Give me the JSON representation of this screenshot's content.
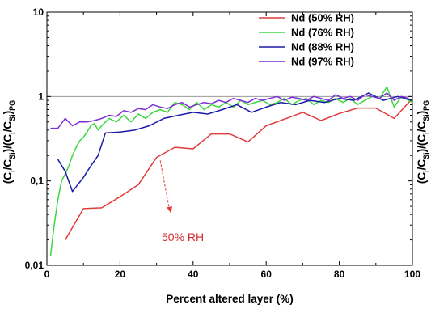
{
  "chart_data": {
    "type": "line",
    "xlabel": "Percent altered layer (%)",
    "ylabel_left": "(Ci/CSi)/(Ci/CSi)PG",
    "ylabel_right": "(Ci/CSi)/(Ci/CSi)PG",
    "xlim": [
      0,
      100
    ],
    "ylim": [
      0.01,
      10
    ],
    "yscale": "log",
    "xticks": [
      0,
      20,
      40,
      60,
      80,
      100
    ],
    "xtick_labels": [
      "0",
      "20",
      "40",
      "60",
      "80",
      "100"
    ],
    "yticks": [
      0.01,
      0.1,
      1,
      10
    ],
    "ytick_labels": [
      "0,01",
      "0,1",
      "1",
      "10"
    ],
    "reference_line": 1,
    "legend_position": "top-right",
    "annotation": {
      "text": "50% RH",
      "series": "Nd (50% RH)",
      "at_x": 31,
      "at_y": 0.2
    },
    "series": [
      {
        "name": "Nd (50% RH)",
        "color": "#e33b3b",
        "x": [
          5,
          10,
          15,
          20,
          25,
          30,
          35,
          40,
          45,
          50,
          55,
          60,
          70,
          75,
          80,
          85,
          90,
          95,
          100
        ],
        "y": [
          0.02,
          0.047,
          0.048,
          0.065,
          0.09,
          0.19,
          0.25,
          0.24,
          0.36,
          0.36,
          0.29,
          0.45,
          0.65,
          0.52,
          0.63,
          0.73,
          0.73,
          0.55,
          0.95
        ]
      },
      {
        "name": "Nd (76% RH)",
        "color": "#3dd63d",
        "x": [
          1,
          2,
          3,
          4,
          5,
          6,
          7,
          8,
          9,
          10,
          11,
          12,
          13,
          14,
          15,
          17,
          19,
          21,
          23,
          25,
          27,
          29,
          31,
          33,
          35,
          37,
          39,
          41,
          43,
          45,
          47,
          49,
          51,
          53,
          55,
          57,
          59,
          61,
          63,
          65,
          67,
          69,
          71,
          73,
          75,
          77,
          79,
          81,
          83,
          85,
          87,
          89,
          91,
          93,
          95,
          97,
          100
        ],
        "y": [
          0.013,
          0.03,
          0.06,
          0.1,
          0.12,
          0.15,
          0.2,
          0.25,
          0.3,
          0.33,
          0.38,
          0.45,
          0.48,
          0.4,
          0.45,
          0.55,
          0.5,
          0.6,
          0.5,
          0.62,
          0.55,
          0.65,
          0.7,
          0.65,
          0.85,
          0.8,
          0.7,
          0.85,
          0.7,
          0.8,
          0.75,
          0.85,
          0.75,
          0.9,
          0.8,
          0.85,
          0.9,
          0.8,
          0.85,
          0.95,
          0.8,
          0.9,
          0.95,
          0.8,
          0.9,
          0.85,
          0.95,
          0.85,
          0.95,
          0.8,
          0.9,
          1.0,
          0.95,
          1.3,
          0.75,
          1.0,
          0.85
        ]
      },
      {
        "name": "Nd (88% RH)",
        "color": "#1a1aa8",
        "x": [
          3,
          5,
          7,
          10,
          12,
          14,
          16,
          20,
          24,
          28,
          32,
          36,
          40,
          44,
          48,
          52,
          56,
          60,
          64,
          68,
          72,
          76,
          80,
          84,
          88,
          92,
          96,
          100
        ],
        "y": [
          0.18,
          0.13,
          0.075,
          0.11,
          0.15,
          0.2,
          0.37,
          0.38,
          0.4,
          0.45,
          0.55,
          0.6,
          0.65,
          0.62,
          0.7,
          0.8,
          0.65,
          0.75,
          0.85,
          0.8,
          0.9,
          0.85,
          0.95,
          0.9,
          1.1,
          0.9,
          1.0,
          0.9
        ]
      },
      {
        "name": "Nd (97% RH)",
        "color": "#7d2ed6",
        "x": [
          1,
          3,
          5,
          7,
          9,
          11,
          13,
          15,
          17,
          19,
          21,
          23,
          25,
          27,
          29,
          31,
          33,
          35,
          37,
          39,
          41,
          43,
          45,
          47,
          49,
          51,
          53,
          55,
          57,
          59,
          61,
          63,
          65,
          67,
          69,
          71,
          73,
          75,
          77,
          79,
          81,
          83,
          85,
          87,
          89,
          91,
          93,
          95,
          97,
          99
        ],
        "y": [
          0.42,
          0.42,
          0.55,
          0.45,
          0.5,
          0.5,
          0.52,
          0.55,
          0.6,
          0.58,
          0.68,
          0.65,
          0.72,
          0.7,
          0.8,
          0.75,
          0.72,
          0.8,
          0.85,
          0.75,
          0.8,
          0.85,
          0.82,
          0.9,
          0.85,
          0.95,
          0.9,
          0.85,
          0.95,
          0.9,
          0.95,
          1.0,
          0.9,
          0.98,
          0.95,
          0.9,
          1.0,
          0.95,
          0.9,
          1.05,
          0.95,
          1.0,
          0.9,
          1.05,
          1.0,
          0.95,
          1.1,
          0.9,
          1.0,
          0.95
        ]
      }
    ]
  }
}
